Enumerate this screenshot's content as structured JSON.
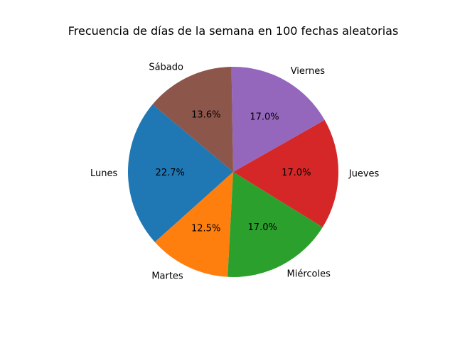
{
  "chart_data": {
    "type": "pie",
    "title": "Frecuencia de días de la semana en 100 fechas aleatorias",
    "categories": [
      "Lunes",
      "Martes",
      "Miércoles",
      "Jueves",
      "Viernes",
      "Sábado"
    ],
    "values": [
      22.7,
      12.5,
      17.0,
      17.0,
      17.0,
      13.6
    ],
    "value_labels": [
      "22.7%",
      "12.5%",
      "17.0%",
      "17.0%",
      "17.0%",
      "13.6%"
    ],
    "colors": [
      "#1f77b4",
      "#ff7f0e",
      "#2ca02c",
      "#d62728",
      "#9467bd",
      "#8c564b"
    ],
    "start_angle_deg": 140,
    "direction": "counterclockwise",
    "legend": false
  }
}
